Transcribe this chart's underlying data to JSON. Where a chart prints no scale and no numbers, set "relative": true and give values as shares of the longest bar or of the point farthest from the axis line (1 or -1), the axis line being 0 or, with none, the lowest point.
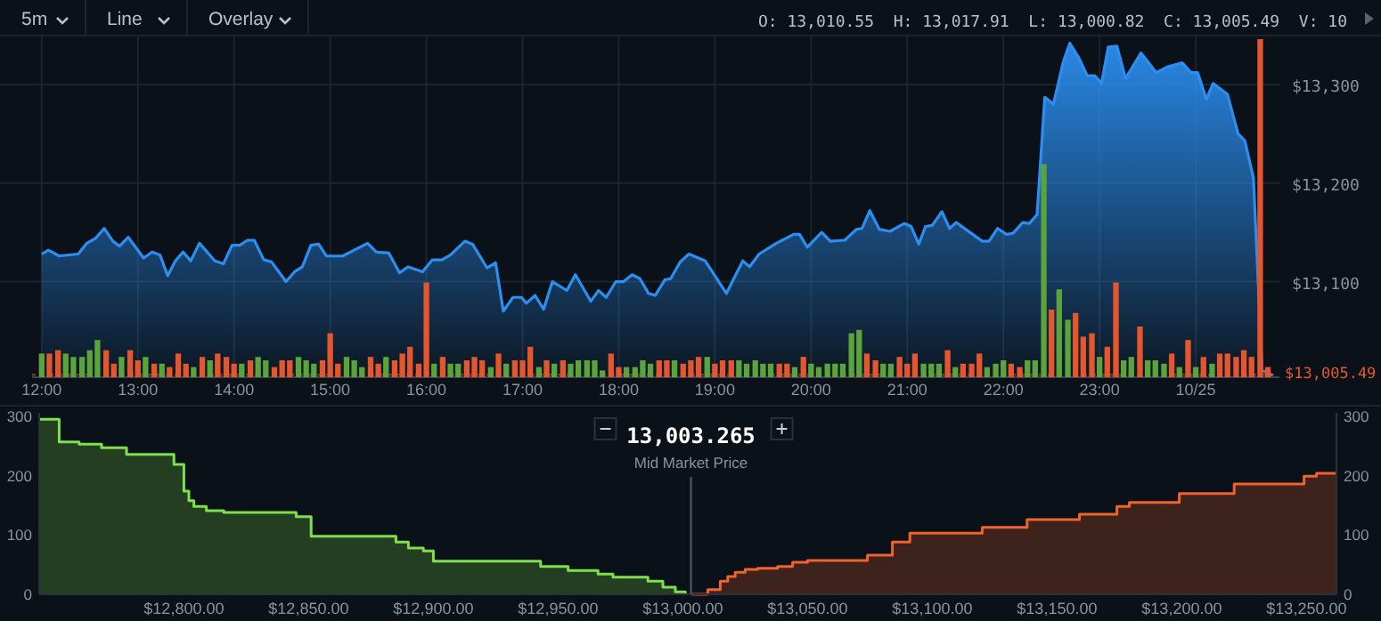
{
  "chart_data": [
    {
      "type": "area",
      "color": "#2b8ef0",
      "grid": true,
      "annotations": [
        "5m",
        "Line",
        "Overlay",
        "O: 13,010.55",
        "H: 13,017.91",
        "L: 13,000.82",
        "C: 13,005.49",
        "V: 10"
      ],
      "xlim": [
        11.9,
        24.87
      ],
      "ylim": [
        13003,
        13346
      ],
      "xticks": [
        {
          "value": 12,
          "label": "12:00"
        },
        {
          "value": 13,
          "label": "13:00"
        },
        {
          "value": 14,
          "label": "14:00"
        },
        {
          "value": 15,
          "label": "15:00"
        },
        {
          "value": 16,
          "label": "16:00"
        },
        {
          "value": 17,
          "label": "17:00"
        },
        {
          "value": 18,
          "label": "18:00"
        },
        {
          "value": 19,
          "label": "19:00"
        },
        {
          "value": 20,
          "label": "20:00"
        },
        {
          "value": 21,
          "label": "21:00"
        },
        {
          "value": 22,
          "label": "22:00"
        },
        {
          "value": 23,
          "label": "23:00"
        },
        {
          "value": 24,
          "label": "10/25"
        }
      ],
      "yticks": [
        {
          "value": 13100,
          "label": "$13,100"
        },
        {
          "value": 13200,
          "label": "$13,200"
        },
        {
          "value": 13300,
          "label": "$13,300"
        }
      ],
      "ref_lines": [
        {
          "axis": "y",
          "value": 13005.49,
          "label": "$13,005.49",
          "color": "#e4572e"
        }
      ],
      "x": [
        12,
        12.07,
        12.18,
        12.38,
        12.47,
        12.56,
        12.65,
        12.74,
        12.81,
        12.9,
        13.06,
        13.15,
        13.23,
        13.31,
        13.39,
        13.47,
        13.55,
        13.64,
        13.8,
        13.89,
        13.98,
        14.06,
        14.14,
        14.21,
        14.31,
        14.39,
        14.54,
        14.63,
        14.71,
        14.8,
        14.88,
        14.96,
        15.13,
        15.39,
        15.48,
        15.61,
        15.72,
        15.81,
        15.96,
        16.06,
        16.16,
        16.25,
        16.4,
        16.48,
        16.63,
        16.72,
        16.8,
        16.9,
        16.99,
        17.04,
        17.13,
        17.22,
        17.31,
        17.46,
        17.55,
        17.71,
        17.79,
        17.87,
        17.97,
        18.05,
        18.14,
        18.22,
        18.31,
        18.38,
        18.48,
        18.54,
        18.64,
        18.73,
        18.9,
        19.12,
        19.29,
        19.36,
        19.46,
        19.64,
        19.82,
        19.88,
        19.96,
        20.11,
        20.2,
        20.35,
        20.47,
        20.53,
        20.61,
        20.71,
        20.82,
        20.97,
        21.04,
        21.12,
        21.19,
        21.26,
        21.36,
        21.44,
        21.51,
        21.68,
        21.78,
        21.85,
        21.94,
        22.03,
        22.1,
        22.2,
        22.27,
        22.35,
        22.43,
        22.52,
        22.62,
        22.69,
        22.79,
        22.87,
        22.95,
        23.02,
        23.09,
        23.18,
        23.27,
        23.43,
        23.59,
        23.71,
        23.86,
        23.95,
        24.02,
        24.11,
        24.18,
        24.33,
        24.44,
        24.51,
        24.6,
        24.69,
        24.8
      ],
      "values": [
        13128,
        13132,
        13126,
        13128,
        13139,
        13144,
        13154,
        13141,
        13136,
        13145,
        13124,
        13130,
        13127,
        13106,
        13121,
        13130,
        13121,
        13139,
        13121,
        13118,
        13137,
        13137,
        13142,
        13142,
        13122,
        13120,
        13100,
        13110,
        13115,
        13137,
        13138,
        13126,
        13126,
        13139,
        13130,
        13129,
        13109,
        13115,
        13110,
        13122,
        13122,
        13127,
        13141,
        13138,
        13114,
        13119,
        13070,
        13084,
        13084,
        13078,
        13086,
        13072,
        13100,
        13091,
        13107,
        13080,
        13091,
        13084,
        13100,
        13100,
        13107,
        13103,
        13088,
        13086,
        13102,
        13103,
        13120,
        13128,
        13121,
        13088,
        13121,
        13115,
        13128,
        13139,
        13148,
        13148,
        13135,
        13150,
        13141,
        13142,
        13153,
        13154,
        13172,
        13153,
        13151,
        13159,
        13156,
        13138,
        13156,
        13157,
        13171,
        13154,
        13160,
        13148,
        13141,
        13141,
        13154,
        13148,
        13149,
        13160,
        13159,
        13168,
        13287,
        13280,
        13322,
        13342,
        13326,
        13309,
        13309,
        13301,
        13338,
        13339,
        13306,
        13332,
        13312,
        13318,
        13322,
        13312,
        13312,
        13285,
        13301,
        13290,
        13250,
        13243,
        13205,
        13010,
        13005
      ]
    },
    {
      "type": "bar",
      "relative": true,
      "xlim": [
        11.9,
        24.87
      ],
      "x": [
        12,
        12.08,
        12.17,
        12.25,
        12.33,
        12.42,
        12.5,
        12.58,
        12.67,
        12.75,
        12.83,
        12.92,
        13,
        13.08,
        13.17,
        13.25,
        13.33,
        13.42,
        13.5,
        13.58,
        13.67,
        13.75,
        13.83,
        13.92,
        14,
        14.08,
        14.17,
        14.25,
        14.33,
        14.42,
        14.5,
        14.58,
        14.67,
        14.75,
        14.83,
        14.92,
        15,
        15.08,
        15.17,
        15.25,
        15.33,
        15.42,
        15.5,
        15.58,
        15.67,
        15.75,
        15.83,
        15.92,
        16,
        16.08,
        16.17,
        16.25,
        16.33,
        16.42,
        16.5,
        16.58,
        16.67,
        16.75,
        16.83,
        16.92,
        17,
        17.08,
        17.17,
        17.25,
        17.33,
        17.42,
        17.5,
        17.58,
        17.67,
        17.75,
        17.83,
        17.92,
        18,
        18.08,
        18.17,
        18.25,
        18.33,
        18.42,
        18.5,
        18.58,
        18.67,
        18.75,
        18.83,
        18.92,
        19,
        19.08,
        19.17,
        19.25,
        19.33,
        19.42,
        19.5,
        19.58,
        19.67,
        19.75,
        19.83,
        19.92,
        20,
        20.08,
        20.17,
        20.25,
        20.33,
        20.42,
        20.5,
        20.58,
        20.67,
        20.75,
        20.83,
        20.92,
        21,
        21.08,
        21.17,
        21.25,
        21.33,
        21.42,
        21.5,
        21.58,
        21.67,
        21.75,
        21.83,
        21.92,
        22,
        22.08,
        22.17,
        22.25,
        22.33,
        22.42,
        22.5,
        22.58,
        22.67,
        22.75,
        22.83,
        22.92,
        23,
        23.08,
        23.17,
        23.25,
        23.33,
        23.42,
        23.5,
        23.58,
        23.67,
        23.75,
        23.83,
        23.92,
        24,
        24.08,
        24.17,
        24.25,
        24.33,
        24.42,
        24.5,
        24.58,
        24.67,
        24.75
      ],
      "values": [
        0.07,
        0.07,
        0.08,
        0.07,
        0.06,
        0.06,
        0.08,
        0.11,
        0.08,
        0.04,
        0.06,
        0.08,
        0.05,
        0.06,
        0.04,
        0.04,
        0.03,
        0.07,
        0.04,
        0.03,
        0.06,
        0.05,
        0.07,
        0.06,
        0.04,
        0.04,
        0.05,
        0.06,
        0.05,
        0.03,
        0.05,
        0.05,
        0.06,
        0.05,
        0.04,
        0.05,
        0.13,
        0.04,
        0.06,
        0.05,
        0.03,
        0.06,
        0.04,
        0.06,
        0.05,
        0.07,
        0.09,
        0.04,
        0.28,
        0.04,
        0.06,
        0.04,
        0.04,
        0.05,
        0.06,
        0.05,
        0.03,
        0.07,
        0.04,
        0.05,
        0.05,
        0.09,
        0.03,
        0.05,
        0.04,
        0.05,
        0.04,
        0.05,
        0.05,
        0.05,
        0.02,
        0.07,
        0.03,
        0.03,
        0.03,
        0.05,
        0.04,
        0.05,
        0.05,
        0.05,
        0.04,
        0.05,
        0.06,
        0.06,
        0.04,
        0.05,
        0.05,
        0.05,
        0.04,
        0.05,
        0.04,
        0.04,
        0.04,
        0.04,
        0.03,
        0.06,
        0.04,
        0.03,
        0.04,
        0.04,
        0.04,
        0.13,
        0.14,
        0.07,
        0.05,
        0.04,
        0.04,
        0.06,
        0.04,
        0.07,
        0.04,
        0.04,
        0.04,
        0.08,
        0.03,
        0.04,
        0.04,
        0.07,
        0.03,
        0.04,
        0.05,
        0.04,
        0.03,
        0.05,
        0.05,
        0.63,
        0.2,
        0.26,
        0.17,
        0.19,
        0.12,
        0.13,
        0.06,
        0.09,
        0.28,
        0.05,
        0.06,
        0.15,
        0.05,
        0.05,
        0.04,
        0.07,
        0.03,
        0.11,
        0.03,
        0.06,
        0.04,
        0.07,
        0.07,
        0.06,
        0.08,
        0.06,
        1,
        0.03
      ],
      "colors": [
        "#5ba33b",
        "#e4572e",
        "#e4572e",
        "#5ba33b",
        "#5ba33b",
        "#5ba33b",
        "#5ba33b",
        "#5ba33b",
        "#e4572e",
        "#e4572e",
        "#5ba33b",
        "#e4572e",
        "#e4572e",
        "#5ba33b",
        "#e4572e",
        "#5ba33b",
        "#e4572e",
        "#e4572e",
        "#e4572e",
        "#5ba33b",
        "#e4572e",
        "#5ba33b",
        "#e4572e",
        "#e4572e",
        "#e4572e",
        "#5ba33b",
        "#e4572e",
        "#5ba33b",
        "#5ba33b",
        "#e4572e",
        "#e4572e",
        "#e4572e",
        "#5ba33b",
        "#5ba33b",
        "#5ba33b",
        "#e4572e",
        "#e4572e",
        "#e4572e",
        "#5ba33b",
        "#5ba33b",
        "#5ba33b",
        "#e4572e",
        "#e4572e",
        "#5ba33b",
        "#e4572e",
        "#e4572e",
        "#e4572e",
        "#e4572e",
        "#e4572e",
        "#5ba33b",
        "#e4572e",
        "#5ba33b",
        "#5ba33b",
        "#e4572e",
        "#e4572e",
        "#e4572e",
        "#5ba33b",
        "#e4572e",
        "#5ba33b",
        "#e4572e",
        "#e4572e",
        "#e4572e",
        "#5ba33b",
        "#e4572e",
        "#5ba33b",
        "#e4572e",
        "#5ba33b",
        "#5ba33b",
        "#5ba33b",
        "#5ba33b",
        "#5ba33b",
        "#e4572e",
        "#e4572e",
        "#5ba33b",
        "#5ba33b",
        "#5ba33b",
        "#5ba33b",
        "#e4572e",
        "#e4572e",
        "#5ba33b",
        "#e4572e",
        "#e4572e",
        "#e4572e",
        "#5ba33b",
        "#e4572e",
        "#e4572e",
        "#e4572e",
        "#5ba33b",
        "#5ba33b",
        "#5ba33b",
        "#5ba33b",
        "#5ba33b",
        "#e4572e",
        "#e4572e",
        "#5ba33b",
        "#e4572e",
        "#5ba33b",
        "#5ba33b",
        "#5ba33b",
        "#5ba33b",
        "#5ba33b",
        "#5ba33b",
        "#5ba33b",
        "#e4572e",
        "#e4572e",
        "#5ba33b",
        "#5ba33b",
        "#e4572e",
        "#e4572e",
        "#e4572e",
        "#5ba33b",
        "#5ba33b",
        "#5ba33b",
        "#e4572e",
        "#5ba33b",
        "#e4572e",
        "#e4572e",
        "#e4572e",
        "#5ba33b",
        "#5ba33b",
        "#5ba33b",
        "#e4572e",
        "#e4572e",
        "#5ba33b",
        "#5ba33b",
        "#5ba33b",
        "#e4572e",
        "#5ba33b",
        "#5ba33b",
        "#e4572e",
        "#e4572e",
        "#e4572e",
        "#5ba33b",
        "#e4572e",
        "#e4572e",
        "#5ba33b",
        "#5ba33b",
        "#e4572e",
        "#5ba33b",
        "#5ba33b",
        "#5ba33b",
        "#e4572e",
        "#5ba33b",
        "#e4572e",
        "#5ba33b",
        "#e4572e",
        "#5ba33b",
        "#e4572e",
        "#e4572e",
        "#e4572e",
        "#e4572e",
        "#e4572e",
        "#e4572e",
        "#e4572e"
      ]
    },
    {
      "type": "step",
      "annotations": [
        "13,003.265"
      ],
      "xlim": [
        12742,
        13262
      ],
      "ylim": [
        0,
        306
      ],
      "y2lim": [
        0,
        306
      ],
      "xticks": [
        {
          "value": 12800,
          "label": "$12,800.00"
        },
        {
          "value": 12850,
          "label": "$12,850.00"
        },
        {
          "value": 12900,
          "label": "$12,900.00"
        },
        {
          "value": 12950,
          "label": "$12,950.00"
        },
        {
          "value": 13000,
          "label": "$13,000.00"
        },
        {
          "value": 13050,
          "label": "$13,050.00"
        },
        {
          "value": 13100,
          "label": "$13,100.00"
        },
        {
          "value": 13150,
          "label": "$13,150.00"
        },
        {
          "value": 13200,
          "label": "$13,200.00"
        },
        {
          "value": 13250,
          "label": "$13,250.00"
        }
      ],
      "yticks": [
        0,
        100,
        200,
        300
      ],
      "y2ticks": [
        0,
        100,
        200,
        300
      ],
      "ref_lines": [
        {
          "axis": "x",
          "value": 13003.265,
          "label": "Mid Market Price",
          "color": "#4a525c"
        }
      ],
      "series": [
        {
          "color": "#7ee04a",
          "x": [
            12742,
            12750,
            12758,
            12767,
            12777,
            12796,
            12800,
            12802,
            12804,
            12809,
            12816,
            12845,
            12851,
            12885,
            12890,
            12896,
            12900,
            12943,
            12954,
            12966,
            12972,
            12986,
            12992,
            12997,
            13001
          ],
          "values": [
            295,
            257,
            253,
            247,
            236,
            219,
            174,
            158,
            148,
            141,
            138,
            131,
            98,
            88,
            78,
            73,
            56,
            47,
            40,
            34,
            29,
            22,
            12,
            4,
            0
          ]
        },
        {
          "color": "#f0622e",
          "x": [
            13003.5,
            13010,
            13015,
            13018,
            13021,
            13025,
            13030,
            13038,
            13044,
            13050,
            13074,
            13084,
            13091,
            13120,
            13138,
            13159,
            13174,
            13179,
            13199,
            13221,
            13249,
            13254,
            13262
          ],
          "values": [
            0,
            8,
            22,
            30,
            37,
            42,
            44,
            47,
            54,
            57,
            66,
            88,
            103,
            113,
            126,
            135,
            148,
            155,
            170,
            186,
            199,
            204,
            204
          ]
        }
      ]
    }
  ]
}
